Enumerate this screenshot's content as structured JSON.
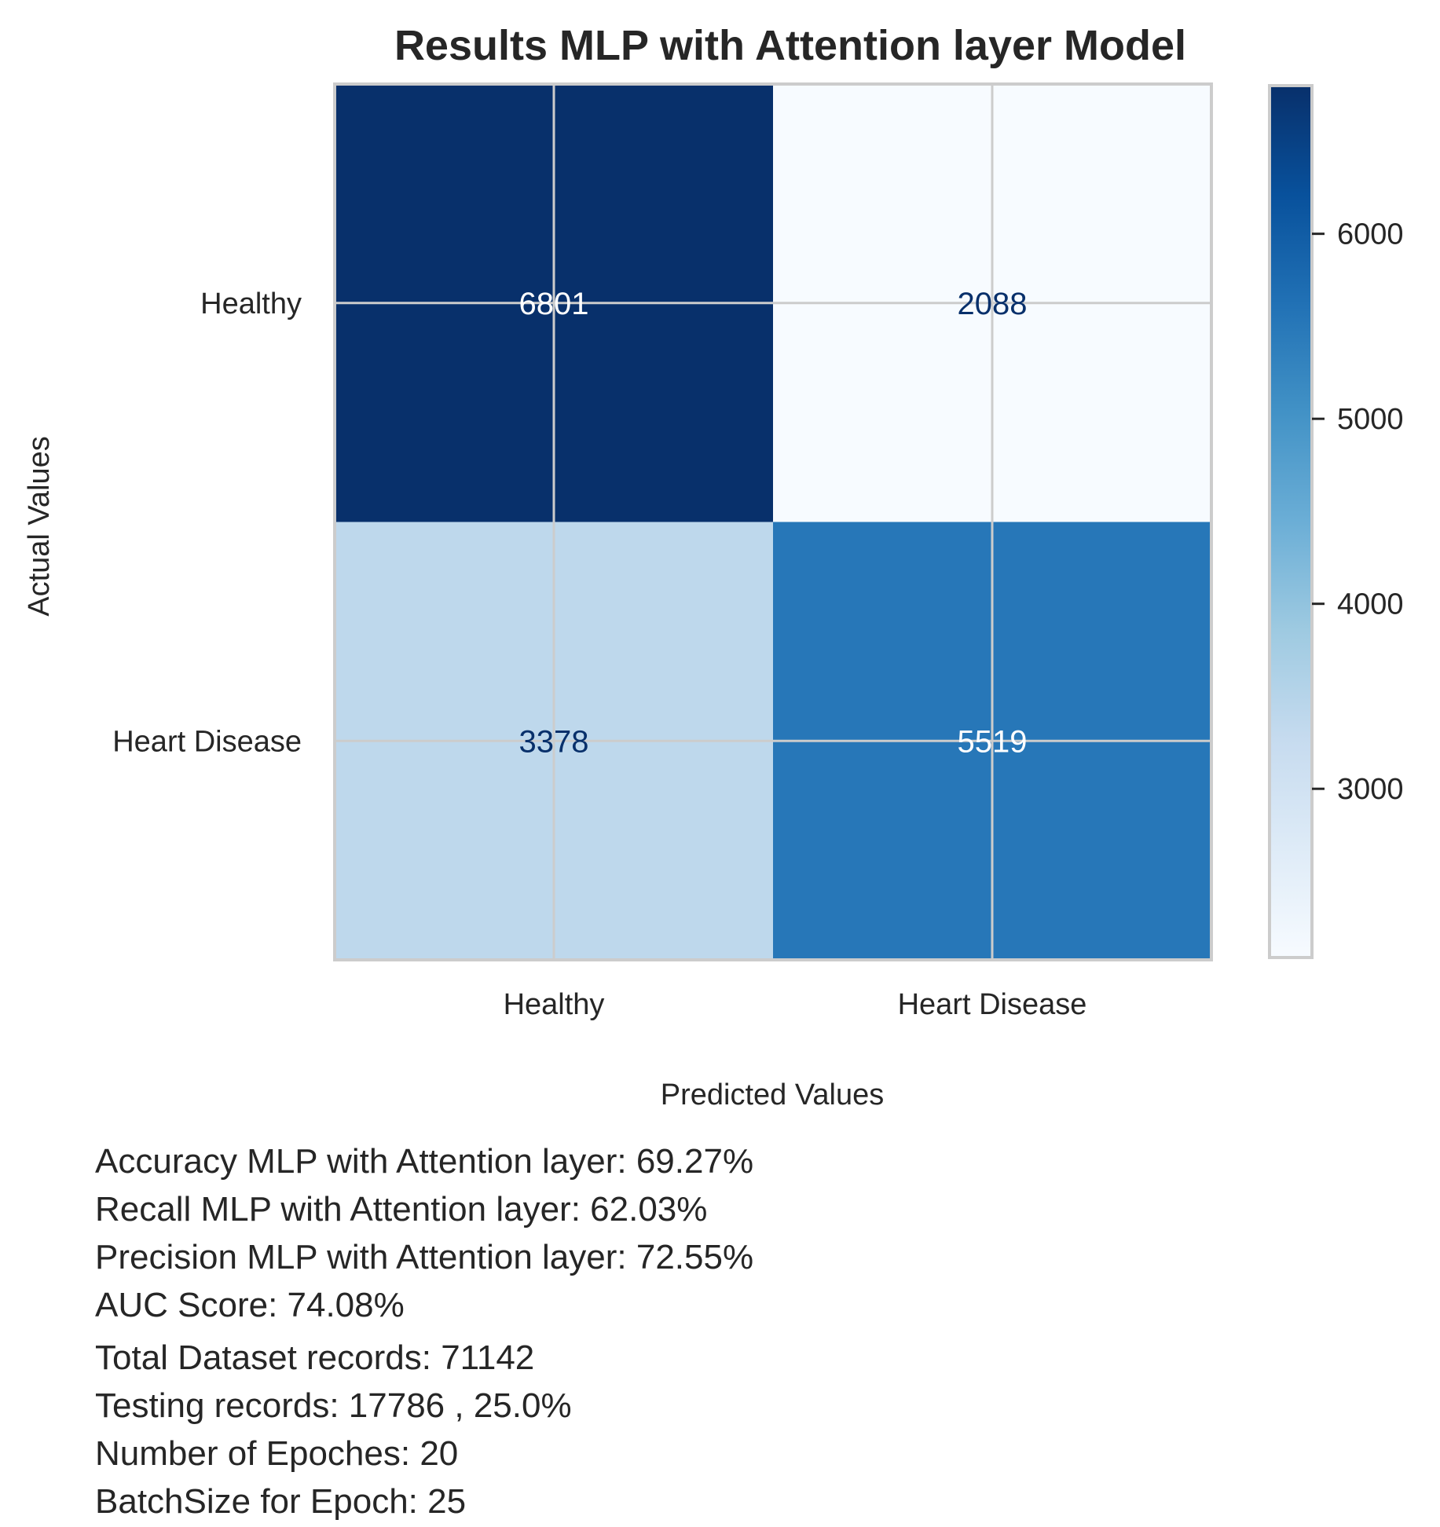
{
  "chart_data": {
    "type": "heatmap",
    "title": "Results MLP with Attention layer Model",
    "xlabel": "Predicted Values",
    "ylabel": "Actual Values",
    "x_categories": [
      "Healthy",
      "Heart Disease"
    ],
    "y_categories": [
      "Healthy",
      "Heart Disease"
    ],
    "values": [
      [
        6801,
        2088
      ],
      [
        3378,
        5519
      ]
    ],
    "colormap": "Blues",
    "colorbar": {
      "min": 2088,
      "max": 6801,
      "ticks": [
        3000,
        4000,
        5000,
        6000
      ]
    },
    "grid": true
  },
  "metrics": [
    "Accuracy MLP with Attention layer: 69.27%",
    "Recall MLP with Attention layer: 62.03%",
    "Precision MLP with Attention layer: 72.55%",
    "AUC Score: 74.08%"
  ],
  "dataset_info": [
    "Total Dataset records: 71142",
    "Testing records: 17786 , 25.0%",
    "Number of Epoches: 20",
    "BatchSize for Epoch: 25"
  ]
}
